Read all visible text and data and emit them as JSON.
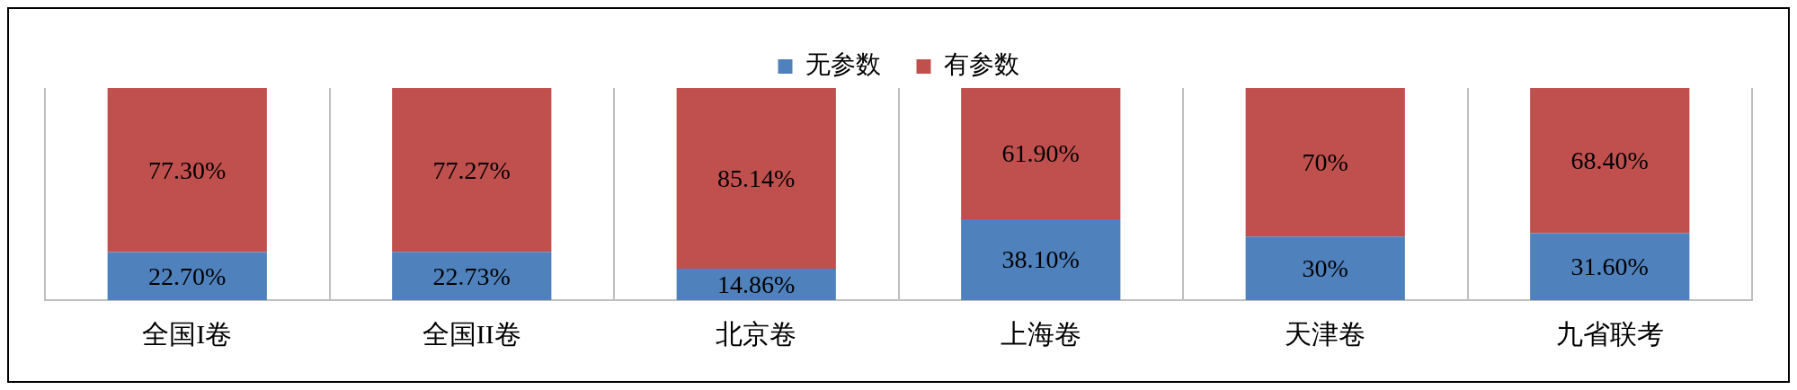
{
  "chart_data": {
    "type": "bar",
    "stacked": true,
    "categories": [
      "全国I卷",
      "全国II卷",
      "北京卷",
      "上海卷",
      "天津卷",
      "九省联考"
    ],
    "series": [
      {
        "name": "无参数",
        "color": "#4f81bd",
        "values": [
          22.7,
          22.73,
          14.86,
          38.1,
          30,
          31.6
        ],
        "value_labels": [
          "22.70%",
          "22.73%",
          "14.86%",
          "38.10%",
          "30%",
          "31.60%"
        ]
      },
      {
        "name": "有参数",
        "color": "#c0504d",
        "values": [
          77.3,
          77.27,
          85.14,
          61.9,
          70,
          68.4
        ],
        "value_labels": [
          "77.30%",
          "77.27%",
          "85.14%",
          "61.90%",
          "70%",
          "68.40%"
        ]
      }
    ],
    "grid": "x",
    "legend": "top"
  }
}
